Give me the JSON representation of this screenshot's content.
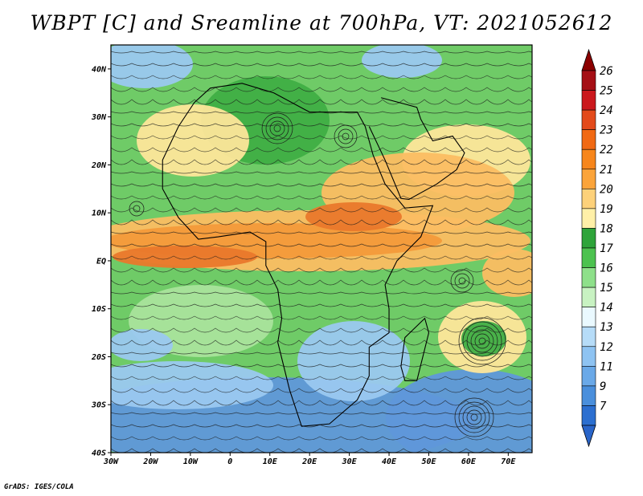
{
  "title": "WBPT [C] and Sreamline at 700hPa, VT: 2021052612",
  "footer": "GrADS: IGES/COLA",
  "map": {
    "lon_range": [
      -30,
      76
    ],
    "lat_range": [
      -40,
      45
    ],
    "lon_ticks": [
      {
        "value": -30,
        "label": "30W"
      },
      {
        "value": -20,
        "label": "20W"
      },
      {
        "value": -10,
        "label": "10W"
      },
      {
        "value": 0,
        "label": "0"
      },
      {
        "value": 10,
        "label": "10E"
      },
      {
        "value": 20,
        "label": "20E"
      },
      {
        "value": 30,
        "label": "30E"
      },
      {
        "value": 40,
        "label": "40E"
      },
      {
        "value": 50,
        "label": "50E"
      },
      {
        "value": 60,
        "label": "60E"
      },
      {
        "value": 70,
        "label": "70E"
      }
    ],
    "lat_ticks": [
      {
        "value": 40,
        "label": "40N"
      },
      {
        "value": 30,
        "label": "30N"
      },
      {
        "value": 20,
        "label": "20N"
      },
      {
        "value": 10,
        "label": "10N"
      },
      {
        "value": 0,
        "label": "EQ"
      },
      {
        "value": -10,
        "label": "10S"
      },
      {
        "value": -20,
        "label": "20S"
      },
      {
        "value": -30,
        "label": "30S"
      },
      {
        "value": -40,
        "label": "40S"
      }
    ]
  },
  "colorbar": {
    "levels": [
      {
        "label": "26",
        "color": "#a50f15"
      },
      {
        "label": "25",
        "color": "#cb181d"
      },
      {
        "label": "24",
        "color": "#e34a1b"
      },
      {
        "label": "23",
        "color": "#f16913"
      },
      {
        "label": "22",
        "color": "#f7861b"
      },
      {
        "label": "21",
        "color": "#fba43a"
      },
      {
        "label": "20",
        "color": "#fdd17a"
      },
      {
        "label": "19",
        "color": "#fff0a8"
      },
      {
        "label": "18",
        "color": "#2ea43a"
      },
      {
        "label": "17",
        "color": "#4cc24f"
      },
      {
        "label": "16",
        "color": "#8ee08a"
      },
      {
        "label": "15",
        "color": "#c8f2c2"
      },
      {
        "label": "14",
        "color": "#eaf9ff"
      },
      {
        "label": "13",
        "color": "#b6dcf8"
      },
      {
        "label": "12",
        "color": "#8ec3f2"
      },
      {
        "label": "11",
        "color": "#6aa9e8"
      },
      {
        "label": "9",
        "color": "#4a8fdc"
      },
      {
        "label": "7",
        "color": "#2c6fd0"
      }
    ],
    "top_color": "#8b0000",
    "bottom_color": "#2a65c9"
  },
  "field_colors": {
    "ocean_cold": "#5f97da",
    "ocean_cool": "#9ac8f0",
    "green_dark": "#3fae45",
    "green_mid": "#6fcb67",
    "green_light": "#a9e39c",
    "yellow": "#fde69a",
    "orange_light": "#fbbd62",
    "orange": "#f39a3a",
    "orange_dark": "#e9782b"
  }
}
